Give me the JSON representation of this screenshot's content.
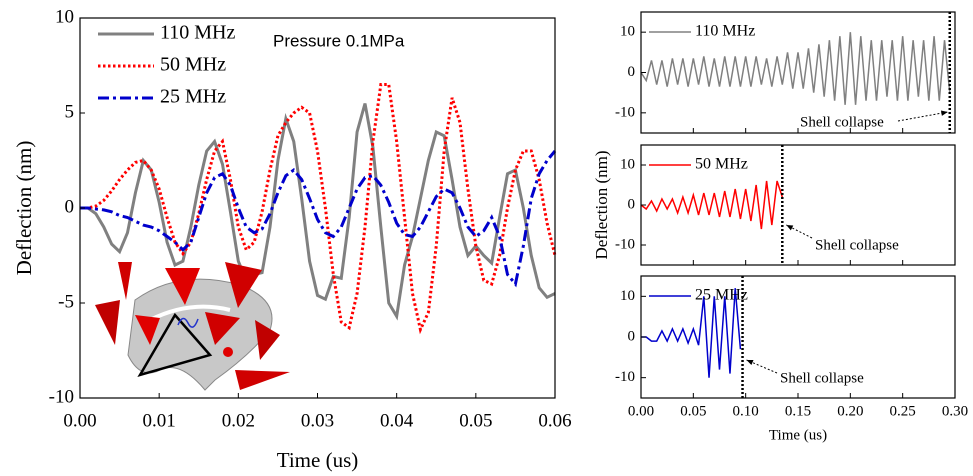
{
  "chart_data": [
    {
      "type": "line",
      "xlabel": "Time (us)",
      "ylabel": "Deflection (nm)",
      "annotation": "Pressure 0.1MPa",
      "legend": "upper left",
      "xlim": [
        0,
        0.06
      ],
      "ylim": [
        -10,
        10
      ],
      "xticks": [
        {
          "value": 0,
          "label": "0.00"
        },
        {
          "value": 0.01,
          "label": "0.01"
        },
        {
          "value": 0.02,
          "label": "0.02"
        },
        {
          "value": 0.03,
          "label": "0.03"
        },
        {
          "value": 0.04,
          "label": "0.04"
        },
        {
          "value": 0.05,
          "label": "0.05"
        },
        {
          "value": 0.06,
          "label": "0.06"
        }
      ],
      "yticks": [
        -10,
        -5,
        0,
        5,
        10
      ],
      "x": [
        0,
        0.001,
        0.002,
        0.003,
        0.004,
        0.005,
        0.006,
        0.007,
        0.008,
        0.009,
        0.01,
        0.011,
        0.012,
        0.013,
        0.014,
        0.015,
        0.016,
        0.017,
        0.018,
        0.019,
        0.02,
        0.021,
        0.022,
        0.023,
        0.024,
        0.025,
        0.026,
        0.027,
        0.028,
        0.029,
        0.03,
        0.031,
        0.032,
        0.033,
        0.034,
        0.035,
        0.036,
        0.037,
        0.038,
        0.039,
        0.04,
        0.041,
        0.042,
        0.043,
        0.044,
        0.045,
        0.046,
        0.047,
        0.048,
        0.049,
        0.05,
        0.051,
        0.052,
        0.053,
        0.054,
        0.055,
        0.056,
        0.057,
        0.058,
        0.059,
        0.06
      ],
      "series": [
        {
          "name": "110 MHz",
          "color": "#808080",
          "dash": "solid",
          "values": [
            0,
            0,
            -0.3,
            -1.0,
            -1.9,
            -2.3,
            -1.3,
            0.8,
            2.5,
            2.0,
            0.3,
            -1.8,
            -3.0,
            -2.8,
            -1.0,
            1.2,
            3.0,
            3.5,
            2.3,
            -0.2,
            -2.8,
            -3.8,
            -3.5,
            -3.4,
            -1.0,
            2.5,
            4.7,
            3.5,
            0.5,
            -2.8,
            -4.6,
            -4.8,
            -3.6,
            -3.7,
            -0.5,
            4.0,
            5.5,
            3.2,
            -1.0,
            -5.0,
            -5.7,
            -3.0,
            -1.5,
            0.5,
            2.5,
            4.0,
            3.8,
            1.5,
            -1.0,
            -2.5,
            -2.0,
            -2.5,
            -2.9,
            -0.5,
            1.8,
            2.0,
            0.0,
            -2.5,
            -4.2,
            -4.7,
            -4.5
          ]
        },
        {
          "name": "50 MHz",
          "color": "#ff0000",
          "dash": "dotted",
          "values": [
            0,
            0,
            0.1,
            0.4,
            0.9,
            1.5,
            2.0,
            2.4,
            2.5,
            2.0,
            1.0,
            -0.5,
            -1.8,
            -2.4,
            -1.8,
            -0.3,
            1.5,
            3.0,
            3.5,
            1.5,
            -1.0,
            -2.2,
            -1.8,
            -0.2,
            2.0,
            3.8,
            4.5,
            5.0,
            5.3,
            5.0,
            3.0,
            0.0,
            -3.5,
            -6.0,
            -6.3,
            -4.5,
            -1.0,
            3.5,
            6.5,
            6.5,
            3.5,
            -0.5,
            -4.5,
            -6.4,
            -5.5,
            -2.0,
            3.0,
            5.8,
            4.5,
            1.0,
            -2.0,
            -3.8,
            -4.0,
            -2.5,
            0.0,
            2.0,
            3.0,
            3.0,
            1.5,
            -0.8,
            -2.5
          ]
        },
        {
          "name": "25 MHz",
          "color": "#0000cc",
          "dash": "dashdot",
          "values": [
            0,
            0,
            -0.05,
            -0.1,
            -0.2,
            -0.4,
            -0.5,
            -0.7,
            -0.9,
            -1.0,
            -1.2,
            -1.5,
            -1.8,
            -2.2,
            -1.8,
            -0.5,
            0.8,
            1.6,
            1.8,
            1.2,
            0.0,
            -1.0,
            -1.3,
            -1.1,
            -0.3,
            0.8,
            1.7,
            2.0,
            1.5,
            0.5,
            -0.6,
            -1.3,
            -1.5,
            -1.0,
            0.0,
            1.0,
            1.6,
            1.7,
            1.2,
            0.3,
            -0.8,
            -1.4,
            -1.5,
            -1.0,
            -0.2,
            0.6,
            1.0,
            0.8,
            0.0,
            -1.0,
            -1.5,
            -1.2,
            -0.5,
            -1.5,
            -3.5,
            -4.0,
            -2.0,
            0.5,
            1.8,
            2.5,
            3.0
          ]
        }
      ]
    },
    {
      "type": "line",
      "annotation": "Shell collapse",
      "collapse_x": 0.295,
      "xlim": [
        0,
        0.3
      ],
      "ylim": [
        -15,
        15
      ],
      "yticks": [
        -10,
        0,
        10
      ],
      "x": [
        0,
        0.005,
        0.01,
        0.015,
        0.02,
        0.025,
        0.03,
        0.035,
        0.04,
        0.045,
        0.05,
        0.055,
        0.06,
        0.065,
        0.07,
        0.075,
        0.08,
        0.085,
        0.09,
        0.095,
        0.1,
        0.105,
        0.11,
        0.115,
        0.12,
        0.125,
        0.13,
        0.135,
        0.14,
        0.145,
        0.15,
        0.155,
        0.16,
        0.165,
        0.17,
        0.175,
        0.18,
        0.185,
        0.19,
        0.195,
        0.2,
        0.205,
        0.21,
        0.215,
        0.22,
        0.225,
        0.23,
        0.235,
        0.24,
        0.245,
        0.25,
        0.255,
        0.26,
        0.265,
        0.27,
        0.275,
        0.28,
        0.285,
        0.29,
        0.295
      ],
      "series": [
        {
          "name": "110 MHz",
          "color": "#808080",
          "dash": "solid",
          "values": [
            0,
            -2,
            3,
            -3,
            3,
            -3.5,
            3.5,
            -3,
            3.5,
            -3.5,
            3.5,
            -3,
            4,
            -3.5,
            3.5,
            -3.5,
            4,
            -3.5,
            4,
            -3.5,
            4,
            -3.5,
            4,
            -3,
            3.5,
            -3.5,
            4,
            -3,
            5,
            -4,
            5,
            -4,
            6,
            -5,
            7,
            -6,
            8,
            -7,
            9,
            -8,
            10,
            -8,
            9,
            -7,
            8,
            -7,
            8,
            -6,
            8,
            -7,
            9,
            -7,
            8,
            -6,
            8,
            -7,
            9,
            -7,
            8,
            -5
          ]
        }
      ]
    },
    {
      "type": "line",
      "annotation": "Shell collapse",
      "collapse_x": 0.135,
      "ylabel": "Deflection (nm)",
      "xlim": [
        0,
        0.3
      ],
      "ylim": [
        -15,
        15
      ],
      "yticks": [
        -10,
        0,
        10
      ],
      "x": [
        0,
        0.005,
        0.01,
        0.015,
        0.02,
        0.025,
        0.03,
        0.035,
        0.04,
        0.045,
        0.05,
        0.055,
        0.06,
        0.065,
        0.07,
        0.075,
        0.08,
        0.085,
        0.09,
        0.095,
        0.1,
        0.105,
        0.11,
        0.115,
        0.12,
        0.125,
        0.13,
        0.135
      ],
      "series": [
        {
          "name": "50 MHz",
          "color": "#ff0000",
          "dash": "solid",
          "values": [
            0,
            -1,
            1,
            -1.5,
            1.5,
            -1,
            1.5,
            -2,
            2,
            -2,
            2.5,
            -2.5,
            3,
            -2.5,
            3,
            -3,
            3.5,
            -3,
            4,
            -3.5,
            4,
            -4,
            5,
            -6,
            6,
            -5,
            6,
            2
          ]
        }
      ]
    },
    {
      "type": "line",
      "annotation": "Shell collapse",
      "collapse_x": 0.097,
      "xlabel": "Time (us)",
      "xlim": [
        0,
        0.3
      ],
      "ylim": [
        -15,
        15
      ],
      "yticks": [
        -10,
        0,
        10
      ],
      "xticks": [
        {
          "value": 0,
          "label": "0.00"
        },
        {
          "value": 0.05,
          "label": "0.05"
        },
        {
          "value": 0.1,
          "label": "0.10"
        },
        {
          "value": 0.15,
          "label": "0.15"
        },
        {
          "value": 0.2,
          "label": "0.20"
        },
        {
          "value": 0.25,
          "label": "0.25"
        },
        {
          "value": 0.3,
          "label": "0.30"
        }
      ],
      "x": [
        0,
        0.005,
        0.01,
        0.015,
        0.02,
        0.025,
        0.03,
        0.035,
        0.04,
        0.045,
        0.05,
        0.055,
        0.06,
        0.065,
        0.07,
        0.075,
        0.08,
        0.085,
        0.09,
        0.095
      ],
      "series": [
        {
          "name": "25 MHz",
          "color": "#0000cc",
          "dash": "solid",
          "values": [
            0,
            0,
            -1,
            -1,
            1.5,
            -1,
            2,
            -1,
            2,
            -1.5,
            2,
            -2,
            10,
            -10,
            10,
            -8,
            10,
            -9,
            12,
            -3
          ]
        }
      ]
    }
  ]
}
